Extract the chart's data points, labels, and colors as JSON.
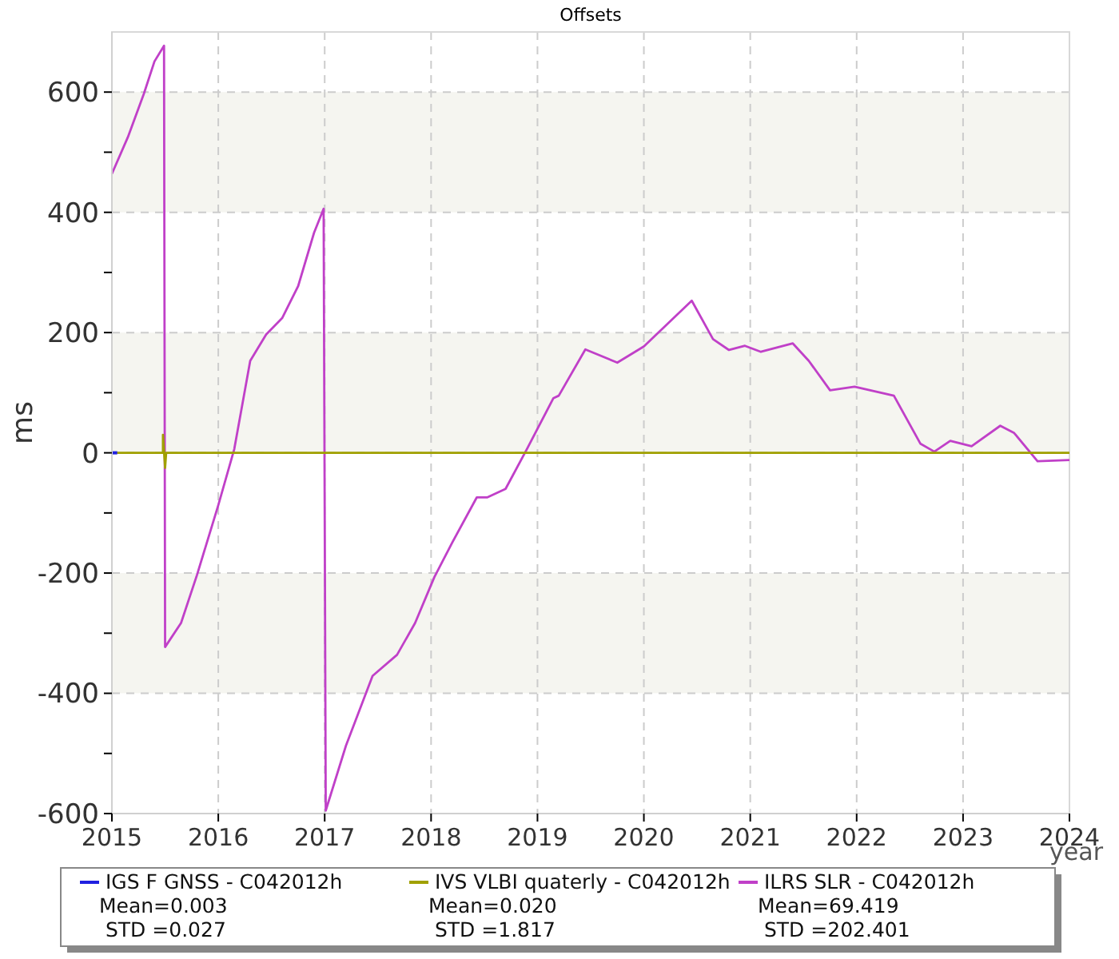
{
  "chart_data": {
    "type": "line",
    "title": "Offsets",
    "xlabel": "year",
    "ylabel": "ms",
    "xlim": [
      2015,
      2024
    ],
    "xticks": [
      2015,
      2016,
      2017,
      2018,
      2019,
      2020,
      2021,
      2022,
      2023,
      2024
    ],
    "ylim": [
      -600,
      700
    ],
    "yticks": [
      -600,
      {
        "value": -500,
        "label": null
      },
      -400,
      {
        "value": -300,
        "label": null
      },
      -200,
      {
        "value": -100,
        "label": null
      },
      0,
      {
        "value": 100,
        "label": null
      },
      200,
      {
        "value": 300,
        "label": null
      },
      400,
      {
        "value": 500,
        "label": null
      },
      600
    ],
    "grid": true,
    "legend": "bottom",
    "line_style": "solid",
    "marker": "none",
    "bands": [
      {
        "axis": "y",
        "from": 400,
        "to": 600,
        "color": "#f5f5f0"
      },
      {
        "axis": "y",
        "from": 0,
        "to": 200,
        "color": "#f5f5f0"
      },
      {
        "axis": "y",
        "from": -400,
        "to": -200,
        "color": "#f5f5f0"
      }
    ],
    "annotations": [
      "Mean=0.003",
      " STD =0.027",
      "Mean=0.020",
      " STD =1.817",
      "Mean=69.419",
      " STD =202.401"
    ],
    "series": [
      {
        "name": "IGS F GNSS - C042012h",
        "color": "#2020e0",
        "x": [
          2015,
          2015.05
        ],
        "values": [
          0,
          0
        ]
      },
      {
        "name": "IVS VLBI quaterly - C042012h",
        "color": "#a0a000",
        "x": [
          2015,
          2015.48,
          2015.48,
          2015.5,
          2015.51,
          2024
        ],
        "values": [
          0,
          0,
          30,
          -25,
          0,
          0
        ]
      },
      {
        "name": "ILRS SLR - C042012h",
        "color": "#c040c8",
        "x": [
          2015,
          2015.15,
          2015.3,
          2015.4,
          2015.49,
          2015.5,
          2015.65,
          2015.8,
          2016,
          2016.15,
          2016.3,
          2016.45,
          2016.6,
          2016.75,
          2016.9,
          2016.99,
          2017,
          2017.01,
          2017.2,
          2017.45,
          2017.68,
          2017.85,
          2018.03,
          2018.2,
          2018.43,
          2018.53,
          2018.7,
          2018.9,
          2019.15,
          2019.2,
          2019.45,
          2019.75,
          2020,
          2020.45,
          2020.65,
          2020.8,
          2020.95,
          2021.1,
          2021.4,
          2021.55,
          2021.75,
          2021.98,
          2022.35,
          2022.6,
          2022.73,
          2022.88,
          2023.08,
          2023.35,
          2023.48,
          2023.7,
          2024
        ],
        "values": [
          464,
          525,
          597,
          651,
          677,
          -323,
          -283,
          -203,
          -87,
          6,
          153,
          197,
          224,
          277,
          366,
          406,
          -91,
          -595,
          -487,
          -371,
          -336,
          -283,
          -207,
          -149,
          -74,
          -74,
          -60,
          6,
          91,
          95,
          172,
          150,
          177,
          253,
          189,
          171,
          178,
          168,
          182,
          153,
          104,
          110,
          95,
          15,
          2,
          20,
          11,
          45,
          33,
          -14,
          -12
        ]
      }
    ]
  }
}
